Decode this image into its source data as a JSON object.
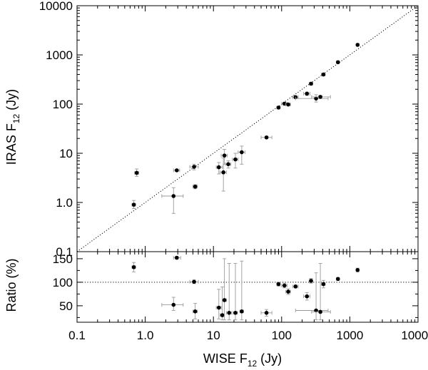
{
  "chart_data": [
    {
      "type": "scatter",
      "panel": "top",
      "xlabel": "WISE F",
      "xlabel_sub": "12",
      "xlabel_unit": " (Jy)",
      "ylabel": "IRAS F",
      "ylabel_sub": "12",
      "ylabel_unit": " (Jy)",
      "xscale": "log",
      "yscale": "log",
      "xlim": [
        0.1,
        10000
      ],
      "ylim": [
        0.1,
        10000
      ],
      "x_ticks": [
        0.1,
        1,
        10,
        100,
        1000,
        10000
      ],
      "y_ticks": [
        0.1,
        1,
        10,
        100,
        1000,
        10000
      ],
      "y_tick_labels": [
        "0.1",
        "1.0",
        "10",
        "100",
        "1000",
        "10000"
      ],
      "reference_line": "y = x",
      "points": [
        {
          "x": 0.68,
          "y": 0.9,
          "xlo": 0.64,
          "xhi": 0.72,
          "ylo": 0.75,
          "yhi": 1.1
        },
        {
          "x": 0.75,
          "y": 4.0,
          "xlo": 0.7,
          "xhi": 0.8,
          "ylo": 3.4,
          "yhi": 4.8
        },
        {
          "x": 2.6,
          "y": 1.35,
          "xlo": 1.75,
          "xhi": 3.6,
          "ylo": 0.6,
          "yhi": 2.0
        },
        {
          "x": 2.9,
          "y": 4.5,
          "xlo": 2.6,
          "xhi": 3.2,
          "ylo": 4.3,
          "yhi": 4.7
        },
        {
          "x": 5.2,
          "y": 5.3,
          "xlo": 4.5,
          "xhi": 6.0,
          "ylo": 4.6,
          "yhi": 6.0
        },
        {
          "x": 5.4,
          "y": 2.1,
          "xlo": 5.0,
          "xhi": 5.8,
          "ylo": 1.9,
          "yhi": 2.3
        },
        {
          "x": 12,
          "y": 5.2,
          "xlo": 11,
          "xhi": 13.5,
          "ylo": 3.8,
          "yhi": 6.5
        },
        {
          "x": 14,
          "y": 4.1,
          "xlo": 12.5,
          "xhi": 15.5,
          "ylo": 1.7,
          "yhi": 8
        },
        {
          "x": 14.5,
          "y": 9.0,
          "xlo": 13,
          "xhi": 16,
          "ylo": 6,
          "yhi": 12
        },
        {
          "x": 16.5,
          "y": 6.0,
          "xlo": 15,
          "xhi": 18,
          "ylo": 5,
          "yhi": 7
        },
        {
          "x": 21,
          "y": 7.5,
          "xlo": 19,
          "xhi": 23,
          "ylo": 5,
          "yhi": 10
        },
        {
          "x": 26,
          "y": 10.5,
          "xlo": 23,
          "xhi": 29,
          "ylo": 6,
          "yhi": 14
        },
        {
          "x": 60,
          "y": 21,
          "xlo": 50,
          "xhi": 72,
          "ylo": 20,
          "yhi": 22
        },
        {
          "x": 90,
          "y": 85,
          "xlo": 85,
          "xhi": 95,
          "ylo": 80,
          "yhi": 90
        },
        {
          "x": 110,
          "y": 102,
          "xlo": 100,
          "xhi": 120,
          "ylo": 97,
          "yhi": 108
        },
        {
          "x": 125,
          "y": 98,
          "xlo": 115,
          "xhi": 135,
          "ylo": 93,
          "yhi": 104
        },
        {
          "x": 160,
          "y": 138,
          "xlo": 145,
          "xhi": 175,
          "ylo": 130,
          "yhi": 146
        },
        {
          "x": 235,
          "y": 163,
          "xlo": 210,
          "xhi": 260,
          "ylo": 150,
          "yhi": 175
        },
        {
          "x": 270,
          "y": 260,
          "xlo": 255,
          "xhi": 285,
          "ylo": 245,
          "yhi": 275
        },
        {
          "x": 320,
          "y": 130,
          "xlo": 160,
          "xhi": 480,
          "ylo": 110,
          "yhi": 155
        },
        {
          "x": 370,
          "y": 140,
          "xlo": 275,
          "xhi": 520,
          "ylo": 130,
          "yhi": 150
        },
        {
          "x": 410,
          "y": 400,
          "xlo": 385,
          "xhi": 435,
          "ylo": 380,
          "yhi": 420
        },
        {
          "x": 670,
          "y": 710,
          "xlo": 640,
          "xhi": 700,
          "ylo": 690,
          "yhi": 730
        },
        {
          "x": 1300,
          "y": 1600,
          "xlo": 1250,
          "xhi": 1350,
          "ylo": 1550,
          "yhi": 1650
        }
      ]
    },
    {
      "type": "scatter",
      "panel": "bottom",
      "xlabel": "WISE F",
      "xlabel_sub": "12",
      "xlabel_unit": " (Jy)",
      "ylabel": "Ratio (%)",
      "xscale": "log",
      "xlim": [
        0.1,
        10000
      ],
      "ylim": [
        15,
        165
      ],
      "x_ticks": [
        0.1,
        1,
        10,
        100,
        1000,
        10000
      ],
      "x_tick_labels": [
        "0.1",
        "1.0",
        "10",
        "100",
        "1000",
        "10000"
      ],
      "y_ticks": [
        50,
        100,
        150
      ],
      "y_tick_labels": [
        "50",
        "100",
        "150"
      ],
      "reference_line": "y = 100",
      "points": [
        {
          "x": 0.68,
          "y": 132,
          "xlo": 0.64,
          "xhi": 0.72,
          "ylo": 122,
          "yhi": 142
        },
        {
          "x": 2.9,
          "y": 152,
          "xlo": 2.6,
          "xhi": 3.3,
          "ylo": 149,
          "yhi": 155
        },
        {
          "x": 2.6,
          "y": 52,
          "xlo": 1.75,
          "xhi": 3.6,
          "ylo": 40,
          "yhi": 68
        },
        {
          "x": 5.2,
          "y": 101,
          "xlo": 4.5,
          "xhi": 6.0,
          "ylo": 97,
          "yhi": 105
        },
        {
          "x": 5.4,
          "y": 38,
          "xlo": 5.0,
          "xhi": 5.8,
          "ylo": 22,
          "yhi": 55
        },
        {
          "x": 12,
          "y": 46,
          "xlo": 11,
          "xhi": 13,
          "ylo": 22,
          "yhi": 85
        },
        {
          "x": 13.5,
          "y": 30,
          "xlo": 12.5,
          "xhi": 14.5,
          "ylo": 20,
          "yhi": 90
        },
        {
          "x": 14.5,
          "y": 62,
          "xlo": 13.5,
          "xhi": 15.5,
          "ylo": 20,
          "yhi": 150
        },
        {
          "x": 17,
          "y": 35,
          "xlo": 15.5,
          "xhi": 18.5,
          "ylo": 20,
          "yhi": 140
        },
        {
          "x": 21,
          "y": 35,
          "xlo": 19.5,
          "xhi": 22.5,
          "ylo": 20,
          "yhi": 140
        },
        {
          "x": 26,
          "y": 38,
          "xlo": 24.5,
          "xhi": 27.5,
          "ylo": 20,
          "yhi": 145
        },
        {
          "x": 60,
          "y": 35,
          "xlo": 50,
          "xhi": 72,
          "ylo": 28,
          "yhi": 42
        },
        {
          "x": 90,
          "y": 96,
          "xlo": 85,
          "xhi": 95,
          "ylo": 92,
          "yhi": 100
        },
        {
          "x": 110,
          "y": 93,
          "xlo": 100,
          "xhi": 120,
          "ylo": 88,
          "yhi": 98
        },
        {
          "x": 125,
          "y": 80,
          "xlo": 115,
          "xhi": 135,
          "ylo": 74,
          "yhi": 86
        },
        {
          "x": 160,
          "y": 91,
          "xlo": 145,
          "xhi": 175,
          "ylo": 88,
          "yhi": 94
        },
        {
          "x": 235,
          "y": 70,
          "xlo": 210,
          "xhi": 260,
          "ylo": 62,
          "yhi": 78
        },
        {
          "x": 270,
          "y": 103,
          "xlo": 255,
          "xhi": 285,
          "ylo": 98,
          "yhi": 108
        },
        {
          "x": 320,
          "y": 40,
          "xlo": 160,
          "xhi": 480,
          "ylo": 20,
          "yhi": 120
        },
        {
          "x": 370,
          "y": 37,
          "xlo": 275,
          "xhi": 520,
          "ylo": 20,
          "yhi": 140
        },
        {
          "x": 410,
          "y": 96,
          "xlo": 385,
          "xhi": 435,
          "ylo": 88,
          "yhi": 104
        },
        {
          "x": 670,
          "y": 107,
          "xlo": 640,
          "xhi": 700,
          "ylo": 104,
          "yhi": 110
        },
        {
          "x": 1300,
          "y": 126,
          "xlo": 1250,
          "xhi": 1350,
          "ylo": 122,
          "yhi": 130
        }
      ]
    }
  ]
}
